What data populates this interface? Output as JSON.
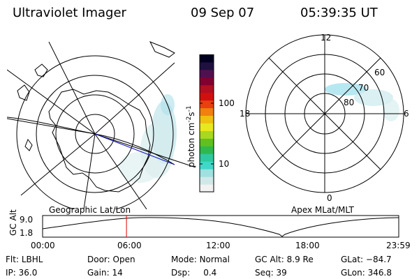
{
  "header": {
    "instrument": "Ultraviolet Imager",
    "date": "09 Sep 07",
    "time": "05:39:35 UT"
  },
  "panels": {
    "left_label": "Geographic Lat/Lon",
    "right_label": "Apex MLat/MLT"
  },
  "colorbar": {
    "label_prefix": "photon cm",
    "exp1": "-2",
    "label_mid": "s",
    "exp2": "-1",
    "ticks": [
      "100",
      "10"
    ],
    "colors": [
      "#f2f2f2",
      "#d0e8e8",
      "#a0e0e0",
      "#40d8c8",
      "#30c8a0",
      "#30b850",
      "#60c020",
      "#a8d820",
      "#e8e820",
      "#f0c010",
      "#f08010",
      "#e84010",
      "#d01010",
      "#b01020",
      "#800030",
      "#501050",
      "#201040",
      "#000020"
    ]
  },
  "polar": {
    "mlt_labels": [
      "12",
      "18",
      "6",
      "0"
    ],
    "lat_labels": [
      "60",
      "70",
      "80"
    ]
  },
  "timeline": {
    "y_label": "GC Alt",
    "y_ticks": [
      "9.0",
      "1.8"
    ],
    "x_ticks": [
      "00:00",
      "06:00",
      "12:00",
      "18:00",
      "23:59"
    ],
    "marker_time": "05:39"
  },
  "info": {
    "flt_label": "Flt:",
    "flt_value": "LBHL",
    "ip_label": "IP:",
    "ip_value": "36.0",
    "door_label": "Door:",
    "door_value": "Open",
    "gain_label": "Gain:",
    "gain_value": "14",
    "mode_label": "Mode:",
    "mode_value": "Normal",
    "dsp_label": "Dsp:",
    "dsp_value": "0.4",
    "gcalt_label": "GC Alt:",
    "gcalt_value": "8.9 Re",
    "seq_label": "Seq:",
    "seq_value": "39",
    "glat_label": "GLat:",
    "glat_value": "−84.7",
    "glon_label": "GLon:",
    "glon_value": "346.8"
  }
}
